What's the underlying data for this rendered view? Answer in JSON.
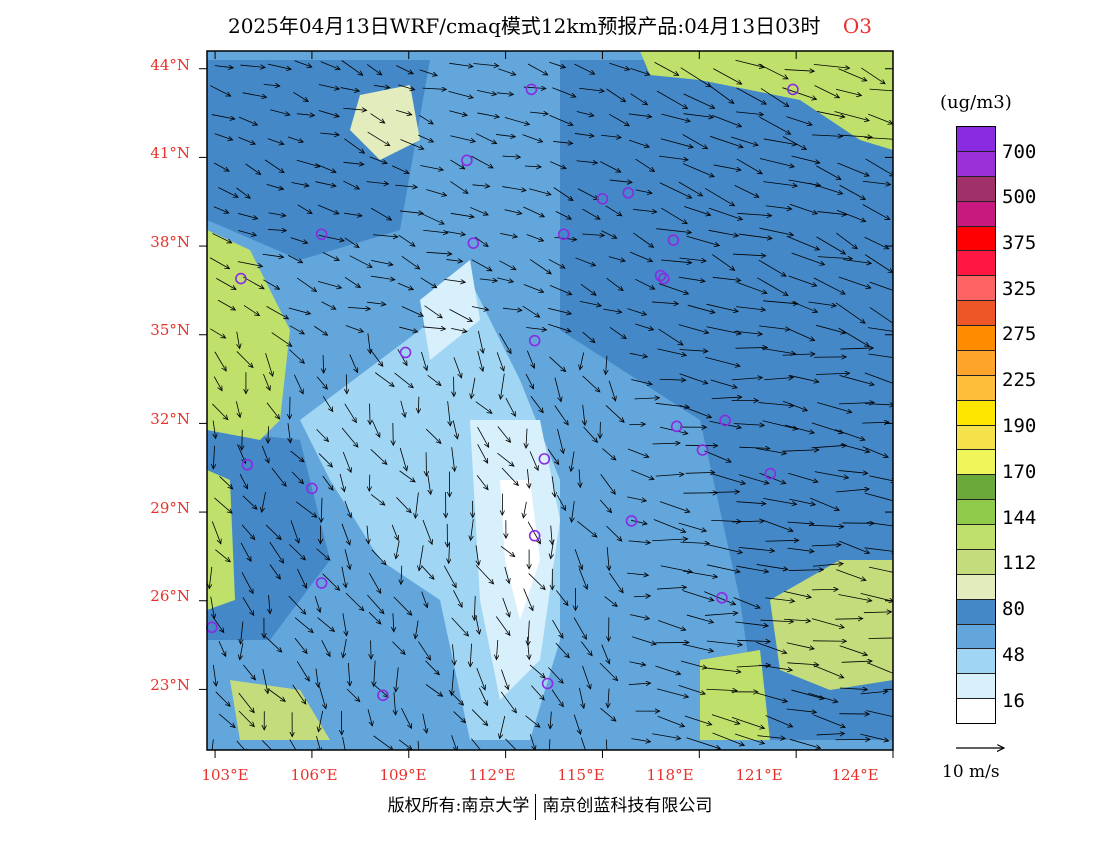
{
  "title": {
    "main": "2025年04月13日WRF/cmaq模式12km预报产品:04月13日03时",
    "species": "O3"
  },
  "axes": {
    "lat_labels": [
      "44°N",
      "41°N",
      "38°N",
      "35°N",
      "32°N",
      "29°N",
      "26°N",
      "23°N"
    ],
    "lon_labels": [
      "103°E",
      "106°E",
      "109°E",
      "112°E",
      "115°E",
      "118°E",
      "121°E",
      "124°E"
    ]
  },
  "legend": {
    "unit": "(ug/m3)",
    "swatches": [
      "#8a2be2",
      "#9b30d8",
      "#a0306a",
      "#c8197e",
      "#ff0000",
      "#ff1744",
      "#ff6464",
      "#ee5527",
      "#ff8c00",
      "#ffa42a",
      "#ffbe3a",
      "#ffe600",
      "#f5e24a",
      "#f0f55a",
      "#6aa93a",
      "#8fca4a",
      "#bfe06b",
      "#c4dc7b",
      "#e2ecbc",
      "#4488c8",
      "#63a6dc",
      "#a0d6f4",
      "#d8effc",
      "#ffffff"
    ],
    "level_labels": [
      "700",
      "500",
      "375",
      "325",
      "275",
      "225",
      "190",
      "170",
      "144",
      "112",
      "80",
      "48",
      "16"
    ]
  },
  "wind_reference": {
    "label": "10 m/s"
  },
  "copyright": {
    "left": "版权所有:南京大学",
    "right": "南京创蓝科技有限公司"
  },
  "stations": [
    [
      112.8,
      43.3
    ],
    [
      103.8,
      36.9
    ],
    [
      110.8,
      40.9
    ],
    [
      113.8,
      38.4
    ],
    [
      115.0,
      39.6
    ],
    [
      115.8,
      39.8
    ],
    [
      108.9,
      34.4
    ],
    [
      117.2,
      38.2
    ],
    [
      112.9,
      34.8
    ],
    [
      116.8,
      37.0
    ],
    [
      106.3,
      38.4
    ],
    [
      111.0,
      38.1
    ],
    [
      116.9,
      36.9
    ],
    [
      120.9,
      43.3
    ],
    [
      104.0,
      30.6
    ],
    [
      106.0,
      29.8
    ],
    [
      106.3,
      26.6
    ],
    [
      108.2,
      22.8
    ],
    [
      112.9,
      28.2
    ],
    [
      113.3,
      23.2
    ],
    [
      115.9,
      28.7
    ],
    [
      113.2,
      30.8
    ],
    [
      117.3,
      31.9
    ],
    [
      118.8,
      32.1
    ],
    [
      120.2,
      30.3
    ],
    [
      118.7,
      26.1
    ],
    [
      102.9,
      25.1
    ],
    [
      118.1,
      31.1
    ]
  ]
}
